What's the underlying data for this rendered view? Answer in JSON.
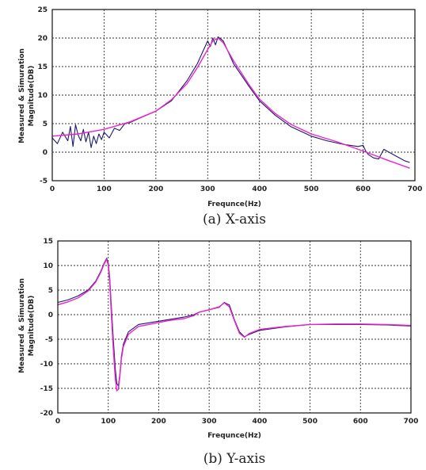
{
  "chart_data": [
    {
      "type": "line",
      "caption": "(a) X-axis",
      "xlabel": "Frequnce(Hz)",
      "ylabel_line1": "Measured & Simuration",
      "ylabel_line2": "Magnitude(DB)",
      "xlim": [
        0,
        700
      ],
      "ylim": [
        -5,
        25
      ],
      "xticks": [
        0,
        100,
        200,
        300,
        400,
        500,
        600,
        700
      ],
      "yticks": [
        -5,
        0,
        5,
        10,
        15,
        20,
        25
      ],
      "grid": true,
      "series": [
        {
          "color": "#1a1a6e",
          "x": [
            0,
            10,
            20,
            30,
            35,
            40,
            45,
            50,
            55,
            60,
            65,
            70,
            75,
            80,
            85,
            90,
            95,
            100,
            110,
            120,
            130,
            140,
            150,
            170,
            200,
            230,
            260,
            280,
            290,
            300,
            305,
            310,
            315,
            320,
            330,
            350,
            380,
            400,
            430,
            460,
            500,
            530,
            560,
            590,
            600,
            605,
            610,
            620,
            630,
            640,
            660,
            680,
            690
          ],
          "y": [
            2.5,
            1.5,
            3.5,
            2.0,
            4.5,
            1.0,
            4.8,
            3.0,
            2.0,
            4.0,
            1.8,
            3.5,
            0.8,
            2.8,
            1.5,
            3.2,
            2.2,
            3.5,
            2.5,
            4.2,
            3.8,
            5.0,
            5.2,
            6.0,
            7.2,
            9.0,
            12.5,
            15.5,
            17.5,
            19.5,
            18.5,
            20.0,
            18.8,
            20.2,
            19.5,
            15.5,
            11.5,
            9.0,
            6.5,
            4.5,
            2.8,
            2.0,
            1.4,
            1.0,
            1.2,
            0.2,
            -0.4,
            -1.0,
            -1.2,
            0.5,
            -0.5,
            -1.5,
            -1.8
          ]
        },
        {
          "color": "#ee22cc",
          "x": [
            0,
            50,
            100,
            150,
            200,
            230,
            260,
            280,
            300,
            310,
            320,
            330,
            350,
            380,
            400,
            430,
            460,
            500,
            550,
            600,
            650,
            690
          ],
          "y": [
            2.8,
            3.2,
            4.0,
            5.3,
            7.2,
            9.2,
            12.0,
            14.8,
            18.0,
            19.5,
            20.0,
            19.2,
            16.0,
            11.8,
            9.3,
            6.8,
            4.9,
            3.2,
            1.8,
            0.2,
            -1.5,
            -2.8
          ]
        }
      ]
    },
    {
      "type": "line",
      "caption": "(b) Y-axis",
      "xlabel": "Frequnce(Hz)",
      "ylabel_line1": "Measured & Simuration",
      "ylabel_line2": "Magnitude(DB)",
      "xlim": [
        0,
        700
      ],
      "ylim": [
        -20,
        15
      ],
      "xticks": [
        0,
        100,
        200,
        300,
        400,
        500,
        600,
        700
      ],
      "yticks": [
        -20,
        -15,
        -10,
        -5,
        0,
        5,
        10,
        15
      ],
      "grid": true,
      "series": [
        {
          "color": "#1a1a6e",
          "x": [
            0,
            20,
            40,
            60,
            75,
            85,
            92,
            97,
            100,
            103,
            106,
            110,
            114,
            117,
            120,
            123,
            126,
            130,
            140,
            160,
            190,
            220,
            250,
            270,
            280,
            300,
            320,
            330,
            335,
            340,
            350,
            360,
            370,
            380,
            400,
            450,
            500,
            550,
            600,
            650,
            700
          ],
          "y": [
            2.5,
            3.0,
            3.8,
            5.0,
            6.8,
            8.8,
            10.5,
            11.5,
            10.5,
            7.5,
            2.0,
            -5.0,
            -11.0,
            -14.0,
            -14.5,
            -12.0,
            -8.5,
            -6.0,
            -3.5,
            -2.0,
            -1.5,
            -1.0,
            -0.5,
            0.0,
            0.5,
            1.0,
            1.5,
            2.5,
            2.2,
            2.0,
            -1.0,
            -3.5,
            -4.5,
            -4.0,
            -3.2,
            -2.5,
            -2.0,
            -2.0,
            -2.0,
            -2.1,
            -2.3
          ]
        },
        {
          "color": "#ee22cc",
          "x": [
            0,
            20,
            40,
            60,
            75,
            85,
            92,
            97,
            100,
            103,
            106,
            110,
            114,
            117,
            120,
            123,
            126,
            130,
            140,
            160,
            190,
            220,
            250,
            270,
            280,
            300,
            320,
            330,
            335,
            340,
            350,
            360,
            370,
            380,
            400,
            450,
            500,
            550,
            600,
            650,
            700
          ],
          "y": [
            2.0,
            2.6,
            3.4,
            4.8,
            6.6,
            8.6,
            10.3,
            11.3,
            10.0,
            6.5,
            0.5,
            -7.0,
            -13.0,
            -15.5,
            -15.2,
            -12.5,
            -9.0,
            -6.5,
            -4.0,
            -2.4,
            -1.8,
            -1.2,
            -0.8,
            -0.2,
            0.5,
            1.0,
            1.6,
            2.4,
            2.0,
            1.6,
            -1.2,
            -3.8,
            -4.6,
            -3.8,
            -3.0,
            -2.4,
            -2.0,
            -1.9,
            -1.9,
            -2.0,
            -2.2
          ]
        }
      ]
    }
  ]
}
